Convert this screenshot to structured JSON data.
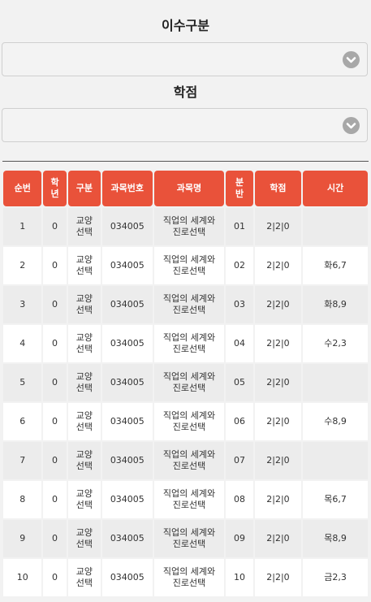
{
  "filters": {
    "category_label": "이수구분",
    "category_value": "",
    "credit_label": "학점",
    "credit_value": ""
  },
  "table": {
    "headers": [
      "순번",
      "학년",
      "구분",
      "과목번호",
      "과목명",
      "분반",
      "학점",
      "시간"
    ],
    "rows": [
      {
        "no": "1",
        "grade": "0",
        "type": "교양선택",
        "code": "034005",
        "name": "직업의 세계와 진로선택",
        "section": "01",
        "credit": "2|2|0",
        "time": ""
      },
      {
        "no": "2",
        "grade": "0",
        "type": "교양선택",
        "code": "034005",
        "name": "직업의 세계와 진로선택",
        "section": "02",
        "credit": "2|2|0",
        "time": "화6,7"
      },
      {
        "no": "3",
        "grade": "0",
        "type": "교양선택",
        "code": "034005",
        "name": "직업의 세계와 진로선택",
        "section": "03",
        "credit": "2|2|0",
        "time": "화8,9"
      },
      {
        "no": "4",
        "grade": "0",
        "type": "교양선택",
        "code": "034005",
        "name": "직업의 세계와 진로선택",
        "section": "04",
        "credit": "2|2|0",
        "time": "수2,3"
      },
      {
        "no": "5",
        "grade": "0",
        "type": "교양선택",
        "code": "034005",
        "name": "직업의 세계와 진로선택",
        "section": "05",
        "credit": "2|2|0",
        "time": ""
      },
      {
        "no": "6",
        "grade": "0",
        "type": "교양선택",
        "code": "034005",
        "name": "직업의 세계와 진로선택",
        "section": "06",
        "credit": "2|2|0",
        "time": "수8,9"
      },
      {
        "no": "7",
        "grade": "0",
        "type": "교양선택",
        "code": "034005",
        "name": "직업의 세계와 진로선택",
        "section": "07",
        "credit": "2|2|0",
        "time": ""
      },
      {
        "no": "8",
        "grade": "0",
        "type": "교양선택",
        "code": "034005",
        "name": "직업의 세계와 진로선택",
        "section": "08",
        "credit": "2|2|0",
        "time": "목6,7"
      },
      {
        "no": "9",
        "grade": "0",
        "type": "교양선택",
        "code": "034005",
        "name": "직업의 세계와 진로선택",
        "section": "09",
        "credit": "2|2|0",
        "time": "목8,9"
      },
      {
        "no": "10",
        "grade": "0",
        "type": "교양선택",
        "code": "034005",
        "name": "직업의 세계와 진로선택",
        "section": "10",
        "credit": "2|2|0",
        "time": "금2,3"
      }
    ]
  },
  "colors": {
    "header_bg": "#e9523a",
    "row_alt_bg": "#ececec"
  },
  "icons": {
    "dropdown": "chevron-down-icon"
  }
}
